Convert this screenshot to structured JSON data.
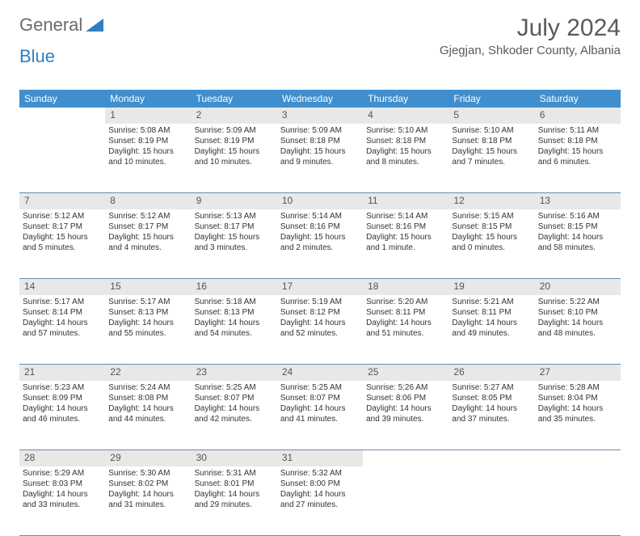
{
  "logo": {
    "text1": "General",
    "text2": "Blue"
  },
  "title": "July 2024",
  "subtitle": "Gjegjan, Shkoder County, Albania",
  "colors": {
    "header_bg": "#3f8fcf",
    "header_text": "#ffffff",
    "daynum_bg": "#e8e8e8",
    "border": "#6a8bb0",
    "title_color": "#5a5a5a",
    "logo_gray": "#6b6b6b",
    "logo_blue": "#2f7fc1"
  },
  "day_headers": [
    "Sunday",
    "Monday",
    "Tuesday",
    "Wednesday",
    "Thursday",
    "Friday",
    "Saturday"
  ],
  "weeks": [
    {
      "nums": [
        "",
        "1",
        "2",
        "3",
        "4",
        "5",
        "6"
      ],
      "cells": [
        "",
        "Sunrise: 5:08 AM\nSunset: 8:19 PM\nDaylight: 15 hours and 10 minutes.",
        "Sunrise: 5:09 AM\nSunset: 8:19 PM\nDaylight: 15 hours and 10 minutes.",
        "Sunrise: 5:09 AM\nSunset: 8:18 PM\nDaylight: 15 hours and 9 minutes.",
        "Sunrise: 5:10 AM\nSunset: 8:18 PM\nDaylight: 15 hours and 8 minutes.",
        "Sunrise: 5:10 AM\nSunset: 8:18 PM\nDaylight: 15 hours and 7 minutes.",
        "Sunrise: 5:11 AM\nSunset: 8:18 PM\nDaylight: 15 hours and 6 minutes."
      ]
    },
    {
      "nums": [
        "7",
        "8",
        "9",
        "10",
        "11",
        "12",
        "13"
      ],
      "cells": [
        "Sunrise: 5:12 AM\nSunset: 8:17 PM\nDaylight: 15 hours and 5 minutes.",
        "Sunrise: 5:12 AM\nSunset: 8:17 PM\nDaylight: 15 hours and 4 minutes.",
        "Sunrise: 5:13 AM\nSunset: 8:17 PM\nDaylight: 15 hours and 3 minutes.",
        "Sunrise: 5:14 AM\nSunset: 8:16 PM\nDaylight: 15 hours and 2 minutes.",
        "Sunrise: 5:14 AM\nSunset: 8:16 PM\nDaylight: 15 hours and 1 minute.",
        "Sunrise: 5:15 AM\nSunset: 8:15 PM\nDaylight: 15 hours and 0 minutes.",
        "Sunrise: 5:16 AM\nSunset: 8:15 PM\nDaylight: 14 hours and 58 minutes."
      ]
    },
    {
      "nums": [
        "14",
        "15",
        "16",
        "17",
        "18",
        "19",
        "20"
      ],
      "cells": [
        "Sunrise: 5:17 AM\nSunset: 8:14 PM\nDaylight: 14 hours and 57 minutes.",
        "Sunrise: 5:17 AM\nSunset: 8:13 PM\nDaylight: 14 hours and 55 minutes.",
        "Sunrise: 5:18 AM\nSunset: 8:13 PM\nDaylight: 14 hours and 54 minutes.",
        "Sunrise: 5:19 AM\nSunset: 8:12 PM\nDaylight: 14 hours and 52 minutes.",
        "Sunrise: 5:20 AM\nSunset: 8:11 PM\nDaylight: 14 hours and 51 minutes.",
        "Sunrise: 5:21 AM\nSunset: 8:11 PM\nDaylight: 14 hours and 49 minutes.",
        "Sunrise: 5:22 AM\nSunset: 8:10 PM\nDaylight: 14 hours and 48 minutes."
      ]
    },
    {
      "nums": [
        "21",
        "22",
        "23",
        "24",
        "25",
        "26",
        "27"
      ],
      "cells": [
        "Sunrise: 5:23 AM\nSunset: 8:09 PM\nDaylight: 14 hours and 46 minutes.",
        "Sunrise: 5:24 AM\nSunset: 8:08 PM\nDaylight: 14 hours and 44 minutes.",
        "Sunrise: 5:25 AM\nSunset: 8:07 PM\nDaylight: 14 hours and 42 minutes.",
        "Sunrise: 5:25 AM\nSunset: 8:07 PM\nDaylight: 14 hours and 41 minutes.",
        "Sunrise: 5:26 AM\nSunset: 8:06 PM\nDaylight: 14 hours and 39 minutes.",
        "Sunrise: 5:27 AM\nSunset: 8:05 PM\nDaylight: 14 hours and 37 minutes.",
        "Sunrise: 5:28 AM\nSunset: 8:04 PM\nDaylight: 14 hours and 35 minutes."
      ]
    },
    {
      "nums": [
        "28",
        "29",
        "30",
        "31",
        "",
        "",
        ""
      ],
      "cells": [
        "Sunrise: 5:29 AM\nSunset: 8:03 PM\nDaylight: 14 hours and 33 minutes.",
        "Sunrise: 5:30 AM\nSunset: 8:02 PM\nDaylight: 14 hours and 31 minutes.",
        "Sunrise: 5:31 AM\nSunset: 8:01 PM\nDaylight: 14 hours and 29 minutes.",
        "Sunrise: 5:32 AM\nSunset: 8:00 PM\nDaylight: 14 hours and 27 minutes.",
        "",
        "",
        ""
      ]
    }
  ]
}
